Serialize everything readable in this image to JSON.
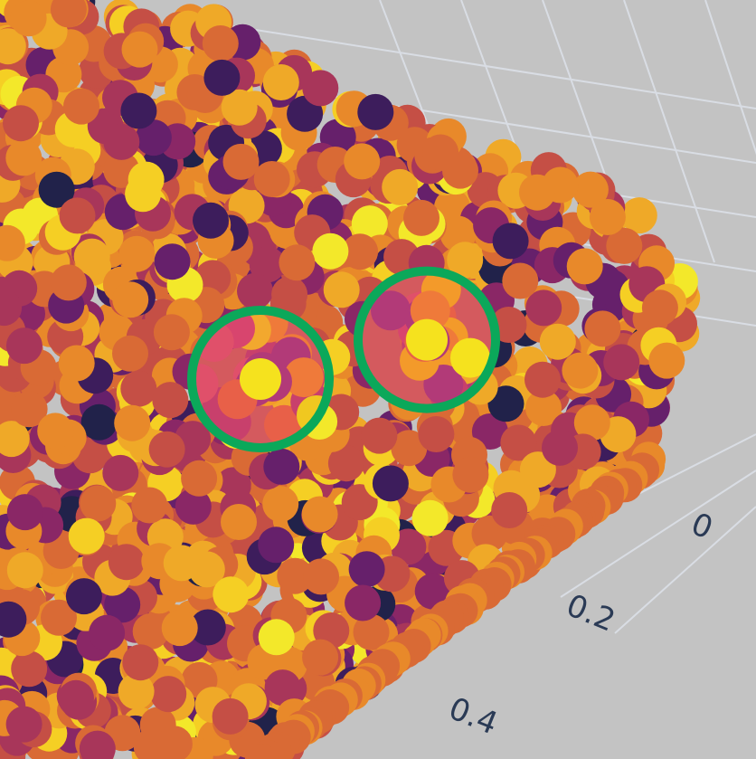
{
  "chart_data": {
    "type": "scatter",
    "mode": "3d",
    "colorscale": [
      "#21224a",
      "#3d1d5c",
      "#66206b",
      "#8a2766",
      "#a8365a",
      "#c54f45",
      "#d96a35",
      "#e8892a",
      "#efa928",
      "#f5cf24",
      "#f3e82a"
    ],
    "axis": {
      "ticks": [
        "0",
        "0.2",
        "0.4"
      ]
    },
    "grid": true,
    "highlights": [
      {
        "label": "",
        "x": 0.12,
        "y": 0.55,
        "ring_color": "#0ba85a"
      },
      {
        "label": "",
        "x": 0.28,
        "y": 0.62,
        "ring_color": "#0ba85a"
      }
    ]
  }
}
